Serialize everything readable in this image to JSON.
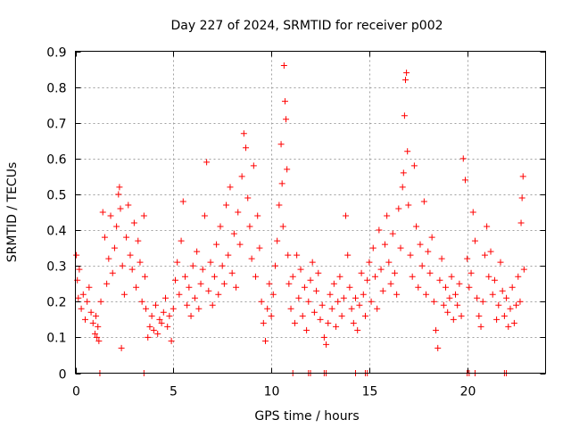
{
  "chart_data": {
    "type": "scatter",
    "title": "Day 227 of 2024, SRMTID for receiver p002",
    "xlabel": "GPS time / hours",
    "ylabel": "SRMTID / TECUs",
    "xlim": [
      0,
      24
    ],
    "ylim": [
      0,
      0.9
    ],
    "xticks": [
      0,
      5,
      10,
      15,
      20
    ],
    "xtick_labels": [
      "0",
      "5",
      "10",
      "15",
      "20"
    ],
    "yticks": [
      0,
      0.1,
      0.2,
      0.3,
      0.4,
      0.5,
      0.6,
      0.7,
      0.8,
      0.9
    ],
    "ytick_labels": [
      "0",
      "0.1",
      "0.2",
      "0.3",
      "0.4",
      "0.5",
      "0.6",
      "0.7",
      "0.8",
      "0.9"
    ],
    "grid": true,
    "marker": "plus",
    "series": [
      {
        "name": "SRMTID",
        "color": "#ff0000",
        "points": [
          [
            0.05,
            0.33
          ],
          [
            0.1,
            0.26
          ],
          [
            0.15,
            0.21
          ],
          [
            0.2,
            0.29
          ],
          [
            0.3,
            0.18
          ],
          [
            0.4,
            0.22
          ],
          [
            0.5,
            0.15
          ],
          [
            0.6,
            0.2
          ],
          [
            0.7,
            0.24
          ],
          [
            0.8,
            0.17
          ],
          [
            0.9,
            0.14
          ],
          [
            1.0,
            0.11
          ],
          [
            1.05,
            0.16
          ],
          [
            1.1,
            0.1
          ],
          [
            1.15,
            0.13
          ],
          [
            1.2,
            0.09
          ],
          [
            1.3,
            0.2
          ],
          [
            1.4,
            0.45
          ],
          [
            1.5,
            0.38
          ],
          [
            1.6,
            0.25
          ],
          [
            1.7,
            0.32
          ],
          [
            1.8,
            0.44
          ],
          [
            1.9,
            0.28
          ],
          [
            2.0,
            0.35
          ],
          [
            2.1,
            0.41
          ],
          [
            2.2,
            0.5
          ],
          [
            2.25,
            0.52
          ],
          [
            2.3,
            0.46
          ],
          [
            2.35,
            0.07
          ],
          [
            2.4,
            0.3
          ],
          [
            2.5,
            0.22
          ],
          [
            2.6,
            0.38
          ],
          [
            2.7,
            0.47
          ],
          [
            2.8,
            0.33
          ],
          [
            2.9,
            0.29
          ],
          [
            3.0,
            0.42
          ],
          [
            3.1,
            0.24
          ],
          [
            3.2,
            0.37
          ],
          [
            3.3,
            0.31
          ],
          [
            3.4,
            0.2
          ],
          [
            3.5,
            0.44
          ],
          [
            3.55,
            0.27
          ],
          [
            3.6,
            0.18
          ],
          [
            3.7,
            0.1
          ],
          [
            3.8,
            0.13
          ],
          [
            3.9,
            0.16
          ],
          [
            4.0,
            0.12
          ],
          [
            4.1,
            0.19
          ],
          [
            4.2,
            0.11
          ],
          [
            4.3,
            0.15
          ],
          [
            4.4,
            0.14
          ],
          [
            4.5,
            0.17
          ],
          [
            4.6,
            0.21
          ],
          [
            4.7,
            0.13
          ],
          [
            4.8,
            0.16
          ],
          [
            4.9,
            0.09
          ],
          [
            5.0,
            0.18
          ],
          [
            5.1,
            0.26
          ],
          [
            5.2,
            0.31
          ],
          [
            5.3,
            0.22
          ],
          [
            5.4,
            0.37
          ],
          [
            5.5,
            0.48
          ],
          [
            5.6,
            0.27
          ],
          [
            5.7,
            0.19
          ],
          [
            5.8,
            0.24
          ],
          [
            5.9,
            0.16
          ],
          [
            6.0,
            0.3
          ],
          [
            6.1,
            0.21
          ],
          [
            6.2,
            0.34
          ],
          [
            6.3,
            0.18
          ],
          [
            6.4,
            0.25
          ],
          [
            6.5,
            0.29
          ],
          [
            6.6,
            0.44
          ],
          [
            6.7,
            0.59
          ],
          [
            6.8,
            0.23
          ],
          [
            6.9,
            0.31
          ],
          [
            7.0,
            0.19
          ],
          [
            7.1,
            0.27
          ],
          [
            7.2,
            0.36
          ],
          [
            7.3,
            0.22
          ],
          [
            7.4,
            0.41
          ],
          [
            7.5,
            0.3
          ],
          [
            7.6,
            0.25
          ],
          [
            7.7,
            0.47
          ],
          [
            7.8,
            0.33
          ],
          [
            7.9,
            0.52
          ],
          [
            8.0,
            0.28
          ],
          [
            8.1,
            0.39
          ],
          [
            8.2,
            0.24
          ],
          [
            8.3,
            0.45
          ],
          [
            8.4,
            0.36
          ],
          [
            8.5,
            0.55
          ],
          [
            8.6,
            0.67
          ],
          [
            8.7,
            0.63
          ],
          [
            8.8,
            0.49
          ],
          [
            8.9,
            0.41
          ],
          [
            9.0,
            0.32
          ],
          [
            9.1,
            0.58
          ],
          [
            9.2,
            0.27
          ],
          [
            9.3,
            0.44
          ],
          [
            9.4,
            0.35
          ],
          [
            9.5,
            0.2
          ],
          [
            9.6,
            0.14
          ],
          [
            9.7,
            0.09
          ],
          [
            9.8,
            0.18
          ],
          [
            9.9,
            0.25
          ],
          [
            10.0,
            0.16
          ],
          [
            10.1,
            0.22
          ],
          [
            10.2,
            0.3
          ],
          [
            10.3,
            0.37
          ],
          [
            10.4,
            0.47
          ],
          [
            10.5,
            0.64
          ],
          [
            10.55,
            0.53
          ],
          [
            10.6,
            0.41
          ],
          [
            10.65,
            0.86
          ],
          [
            10.7,
            0.76
          ],
          [
            10.75,
            0.71
          ],
          [
            10.8,
            0.57
          ],
          [
            10.85,
            0.33
          ],
          [
            10.9,
            0.25
          ],
          [
            11.0,
            0.18
          ],
          [
            11.1,
            0.27
          ],
          [
            11.2,
            0.14
          ],
          [
            11.3,
            0.33
          ],
          [
            11.4,
            0.21
          ],
          [
            11.5,
            0.29
          ],
          [
            11.6,
            0.16
          ],
          [
            11.7,
            0.24
          ],
          [
            11.8,
            0.12
          ],
          [
            11.9,
            0.2
          ],
          [
            12.0,
            0.26
          ],
          [
            12.1,
            0.31
          ],
          [
            12.2,
            0.17
          ],
          [
            12.3,
            0.23
          ],
          [
            12.4,
            0.28
          ],
          [
            12.5,
            0.15
          ],
          [
            12.6,
            0.19
          ],
          [
            12.7,
            0.1
          ],
          [
            12.8,
            0.08
          ],
          [
            12.9,
            0.14
          ],
          [
            13.0,
            0.22
          ],
          [
            13.1,
            0.18
          ],
          [
            13.2,
            0.25
          ],
          [
            13.3,
            0.13
          ],
          [
            13.4,
            0.2
          ],
          [
            13.5,
            0.27
          ],
          [
            13.6,
            0.16
          ],
          [
            13.7,
            0.21
          ],
          [
            13.8,
            0.44
          ],
          [
            13.9,
            0.33
          ],
          [
            14.0,
            0.24
          ],
          [
            14.1,
            0.18
          ],
          [
            14.2,
            0.14
          ],
          [
            14.3,
            0.21
          ],
          [
            14.4,
            0.12
          ],
          [
            14.5,
            0.19
          ],
          [
            14.6,
            0.28
          ],
          [
            14.7,
            0.22
          ],
          [
            14.8,
            0.16
          ],
          [
            14.9,
            0.26
          ],
          [
            15.0,
            0.31
          ],
          [
            15.1,
            0.2
          ],
          [
            15.2,
            0.35
          ],
          [
            15.3,
            0.27
          ],
          [
            15.4,
            0.18
          ],
          [
            15.5,
            0.4
          ],
          [
            15.6,
            0.29
          ],
          [
            15.7,
            0.23
          ],
          [
            15.8,
            0.36
          ],
          [
            15.9,
            0.44
          ],
          [
            16.0,
            0.31
          ],
          [
            16.1,
            0.25
          ],
          [
            16.2,
            0.39
          ],
          [
            16.3,
            0.28
          ],
          [
            16.4,
            0.22
          ],
          [
            16.5,
            0.46
          ],
          [
            16.6,
            0.35
          ],
          [
            16.7,
            0.52
          ],
          [
            16.75,
            0.56
          ],
          [
            16.8,
            0.72
          ],
          [
            16.85,
            0.82
          ],
          [
            16.9,
            0.84
          ],
          [
            16.95,
            0.62
          ],
          [
            17.0,
            0.47
          ],
          [
            17.1,
            0.33
          ],
          [
            17.2,
            0.27
          ],
          [
            17.3,
            0.58
          ],
          [
            17.4,
            0.41
          ],
          [
            17.5,
            0.24
          ],
          [
            17.6,
            0.36
          ],
          [
            17.7,
            0.3
          ],
          [
            17.8,
            0.48
          ],
          [
            17.9,
            0.22
          ],
          [
            18.0,
            0.34
          ],
          [
            18.1,
            0.28
          ],
          [
            18.2,
            0.38
          ],
          [
            18.3,
            0.2
          ],
          [
            18.4,
            0.12
          ],
          [
            18.5,
            0.07
          ],
          [
            18.6,
            0.26
          ],
          [
            18.7,
            0.32
          ],
          [
            18.8,
            0.19
          ],
          [
            18.9,
            0.24
          ],
          [
            19.0,
            0.17
          ],
          [
            19.1,
            0.21
          ],
          [
            19.2,
            0.27
          ],
          [
            19.3,
            0.15
          ],
          [
            19.4,
            0.22
          ],
          [
            19.5,
            0.19
          ],
          [
            19.6,
            0.25
          ],
          [
            19.7,
            0.16
          ],
          [
            19.8,
            0.6
          ],
          [
            19.9,
            0.54
          ],
          [
            20.0,
            0.32
          ],
          [
            20.1,
            0.24
          ],
          [
            20.2,
            0.28
          ],
          [
            20.3,
            0.45
          ],
          [
            20.4,
            0.37
          ],
          [
            20.5,
            0.21
          ],
          [
            20.6,
            0.16
          ],
          [
            20.7,
            0.13
          ],
          [
            20.8,
            0.2
          ],
          [
            20.9,
            0.33
          ],
          [
            21.0,
            0.41
          ],
          [
            21.1,
            0.27
          ],
          [
            21.2,
            0.34
          ],
          [
            21.3,
            0.22
          ],
          [
            21.4,
            0.26
          ],
          [
            21.5,
            0.15
          ],
          [
            21.6,
            0.19
          ],
          [
            21.7,
            0.31
          ],
          [
            21.8,
            0.23
          ],
          [
            21.9,
            0.16
          ],
          [
            22.0,
            0.21
          ],
          [
            22.1,
            0.13
          ],
          [
            22.2,
            0.18
          ],
          [
            22.3,
            0.24
          ],
          [
            22.4,
            0.14
          ],
          [
            22.5,
            0.19
          ],
          [
            22.6,
            0.27
          ],
          [
            22.7,
            0.2
          ],
          [
            22.75,
            0.42
          ],
          [
            22.8,
            0.49
          ],
          [
            22.85,
            0.55
          ],
          [
            22.9,
            0.29
          ],
          [
            1.25,
            0.0
          ],
          [
            3.5,
            0.0
          ],
          [
            11.1,
            0.0
          ],
          [
            11.9,
            0.0
          ],
          [
            12.0,
            0.0
          ],
          [
            12.7,
            0.0
          ],
          [
            12.8,
            0.0
          ],
          [
            14.3,
            0.0
          ],
          [
            14.8,
            0.0
          ],
          [
            14.9,
            0.0
          ],
          [
            20.0,
            0.0
          ],
          [
            20.1,
            0.0
          ],
          [
            20.4,
            0.0
          ],
          [
            21.9,
            0.0
          ],
          [
            22.0,
            0.0
          ]
        ]
      }
    ]
  }
}
